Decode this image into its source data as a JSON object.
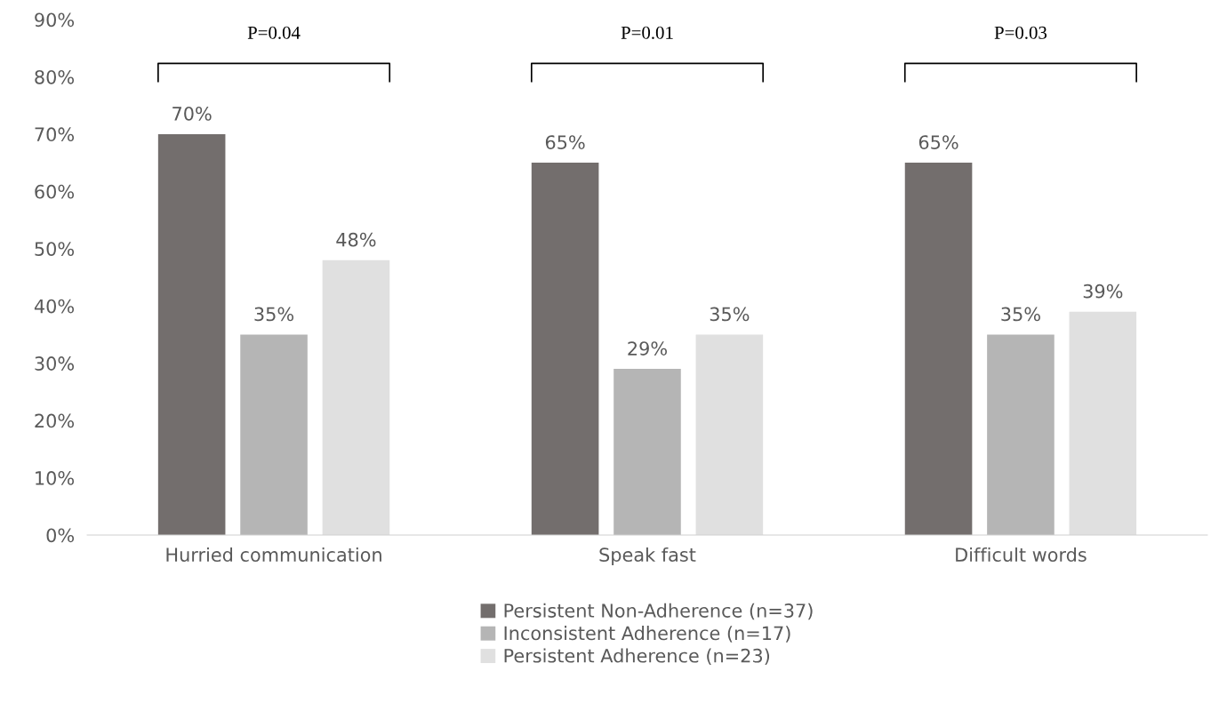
{
  "chart_data": {
    "type": "bar",
    "categories": [
      "Hurried communication",
      "Speak fast",
      "Difficult words"
    ],
    "series": [
      {
        "name": "Persistent Non-Adherence (n=37)",
        "color": "#736e6d",
        "values": [
          70,
          65,
          65
        ],
        "value_labels": [
          "70%",
          "65%",
          "65%"
        ]
      },
      {
        "name": "Inconsistent Adherence (n=17)",
        "color": "#b5b5b5",
        "values": [
          35,
          29,
          35
        ],
        "value_labels": [
          "35%",
          "29%",
          "35%"
        ]
      },
      {
        "name": "Persistent Adherence (n=23)",
        "color": "#e0e0e0",
        "values": [
          48,
          35,
          39
        ],
        "value_labels": [
          "48%",
          "35%",
          "39%"
        ]
      }
    ],
    "ylim": [
      0,
      90
    ],
    "yticks": [
      {
        "value": 0,
        "label": "0%"
      },
      {
        "value": 10,
        "label": "10%"
      },
      {
        "value": 20,
        "label": "20%"
      },
      {
        "value": 30,
        "label": "30%"
      },
      {
        "value": 40,
        "label": "40%"
      },
      {
        "value": 50,
        "label": "50%"
      },
      {
        "value": 60,
        "label": "60%"
      },
      {
        "value": 70,
        "label": "70%"
      },
      {
        "value": 80,
        "label": "80%"
      },
      {
        "value": 90,
        "label": "90%"
      }
    ],
    "annotations": [
      "P=0.04",
      "P=0.01",
      "P=0.03"
    ],
    "grid": false,
    "legend": "bottom"
  }
}
